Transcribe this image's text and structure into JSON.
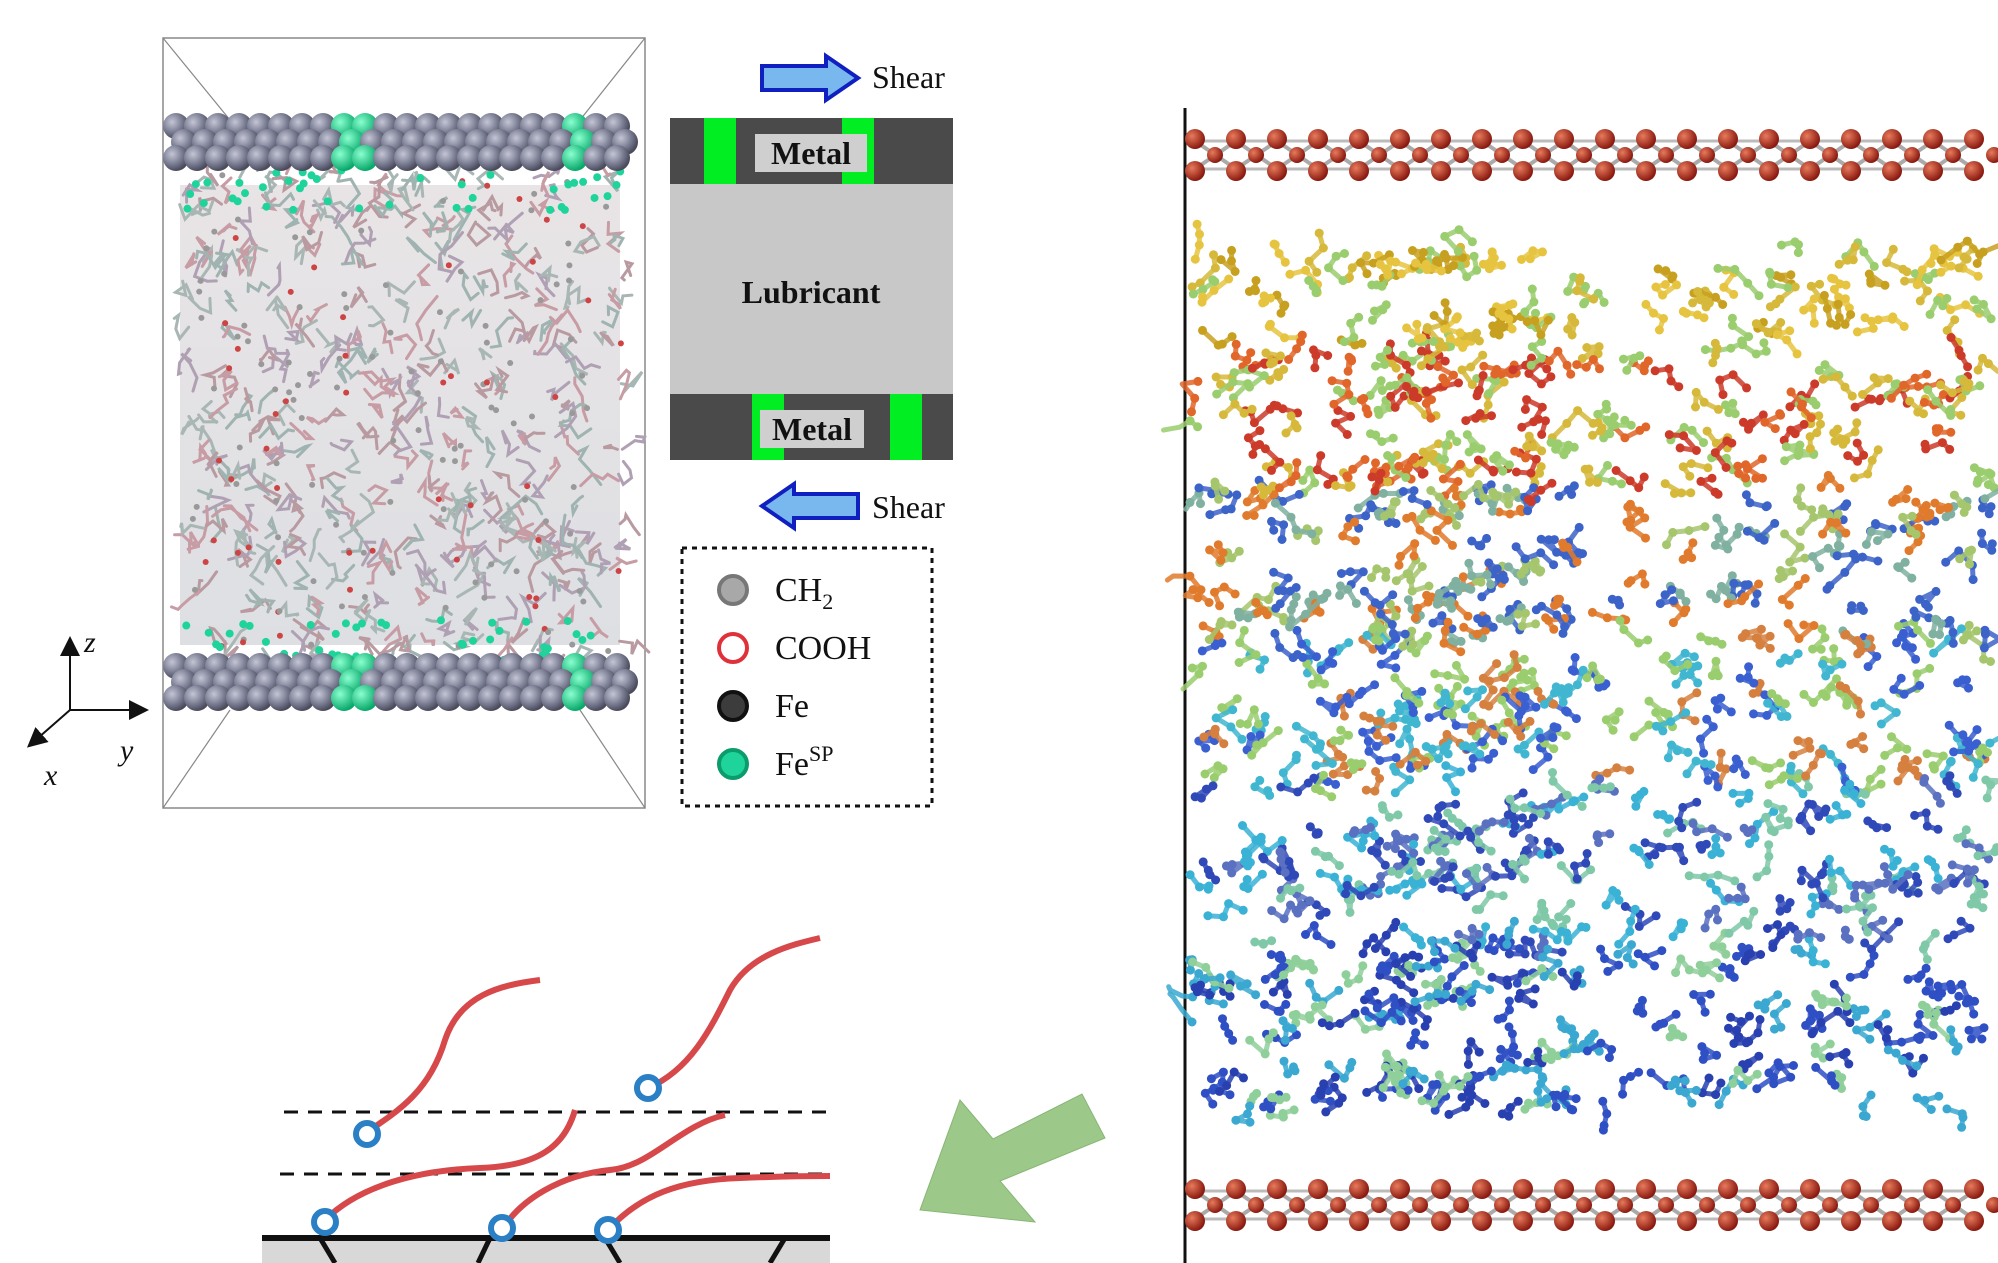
{
  "schematic": {
    "shear_top": "Shear",
    "shear_bottom": "Shear",
    "metal_top": "Metal",
    "lubricant": "Lubricant",
    "metal_bottom": "Metal"
  },
  "legend": {
    "items": [
      {
        "label": "CH",
        "sub": "2",
        "sup": "",
        "color": "#a8a8a8",
        "stroke": "#777777"
      },
      {
        "label": "COOH",
        "sub": "",
        "sup": "",
        "color": "#ffffff",
        "stroke": "#e0303a"
      },
      {
        "label": "Fe",
        "sub": "",
        "sup": "",
        "color": "#3c3c3c",
        "stroke": "#111111"
      },
      {
        "label": "Fe",
        "sub": "",
        "sup": "SP",
        "color": "#1fd49a",
        "stroke": "#0c9c6c"
      }
    ]
  },
  "axes": {
    "z": "z",
    "y": "y",
    "x": "x"
  },
  "colors": {
    "metal_bar": "#4a4a4a",
    "lubricant": "#c8c8c8",
    "green_site": "#00ee22",
    "arrow_blue": "#1020c0",
    "arrow_fill": "#79b8ee",
    "green_arrow": "#9cc98a",
    "chain_red": "#d6484a",
    "head_blue": "#2b7fc4",
    "fe_atom": "#b03020"
  }
}
